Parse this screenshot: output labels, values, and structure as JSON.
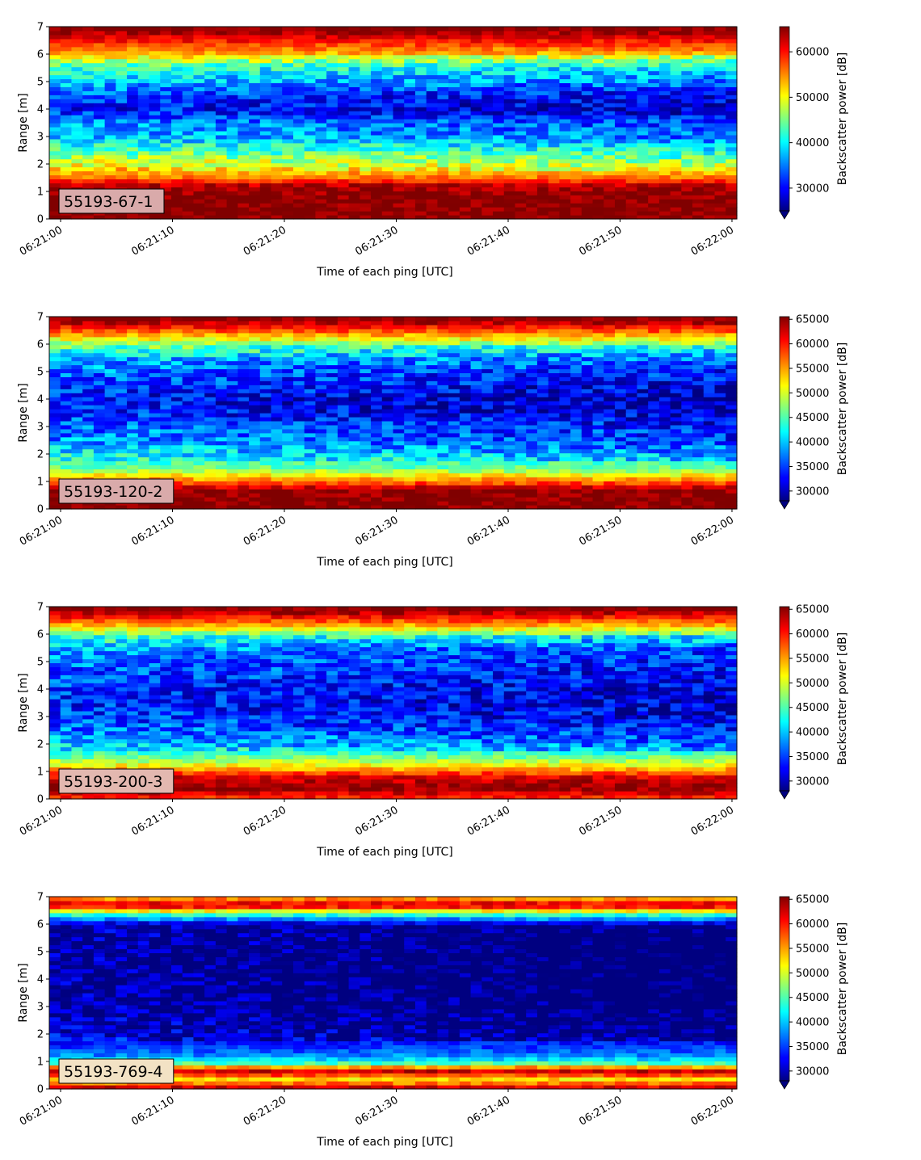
{
  "chart_data": [
    {
      "type": "heatmap",
      "title": "",
      "sample_label": "55193-67-1",
      "xlabel": "Time of each ping [UTC]",
      "ylabel": "Range [m]",
      "ylim": [
        0,
        7
      ],
      "yticks": [
        "0",
        "1",
        "2",
        "3",
        "4",
        "5",
        "6",
        "7"
      ],
      "xticks": [
        "06:21:00",
        "06:21:10",
        "06:21:20",
        "06:21:30",
        "06:21:40",
        "06:21:50",
        "06:22:00"
      ],
      "colorbar_label": "Backscatter power [dB]",
      "colorbar_ticks": [
        30000,
        40000,
        50000,
        60000
      ],
      "colorbar_ticklabels": [
        "30000",
        "40000",
        "50000",
        "60000"
      ],
      "clim": [
        25000,
        65535
      ],
      "colormap": "jet",
      "label_box_color": "#d9aaaa",
      "profile": [
        {
          "y": 0.2,
          "v": 65535
        },
        {
          "y": 0.8,
          "v": 65000
        },
        {
          "y": 1.2,
          "v": 64000
        },
        {
          "y": 1.5,
          "v": 56000
        },
        {
          "y": 2.0,
          "v": 50000
        },
        {
          "y": 2.5,
          "v": 44000
        },
        {
          "y": 3.0,
          "v": 38000
        },
        {
          "y": 3.5,
          "v": 36000
        },
        {
          "y": 4.0,
          "v": 31000
        },
        {
          "y": 4.5,
          "v": 33000
        },
        {
          "y": 5.0,
          "v": 38000
        },
        {
          "y": 5.5,
          "v": 42000
        },
        {
          "y": 6.0,
          "v": 53000
        },
        {
          "y": 6.5,
          "v": 60000
        },
        {
          "y": 6.9,
          "v": 65535
        }
      ]
    },
    {
      "type": "heatmap",
      "title": "",
      "sample_label": "55193-120-2",
      "xlabel": "Time of each ping [UTC]",
      "ylabel": "Range [m]",
      "ylim": [
        0,
        7
      ],
      "yticks": [
        "0",
        "1",
        "2",
        "3",
        "4",
        "5",
        "6",
        "7"
      ],
      "xticks": [
        "06:21:00",
        "06:21:10",
        "06:21:20",
        "06:21:30",
        "06:21:40",
        "06:21:50",
        "06:22:00"
      ],
      "colorbar_label": "Backscatter power [dB]",
      "colorbar_ticks": [
        30000,
        35000,
        40000,
        45000,
        50000,
        55000,
        60000,
        65000
      ],
      "colorbar_ticklabels": [
        "30000",
        "35000",
        "40000",
        "45000",
        "50000",
        "55000",
        "60000",
        "65000"
      ],
      "clim": [
        28000,
        65535
      ],
      "colormap": "jet",
      "label_box_color": "#d9aaaa",
      "profile": [
        {
          "y": 0.2,
          "v": 65535
        },
        {
          "y": 0.7,
          "v": 65000
        },
        {
          "y": 1.0,
          "v": 57000
        },
        {
          "y": 1.5,
          "v": 46000
        },
        {
          "y": 2.0,
          "v": 42000
        },
        {
          "y": 2.5,
          "v": 38000
        },
        {
          "y": 3.0,
          "v": 37000
        },
        {
          "y": 3.5,
          "v": 34000
        },
        {
          "y": 4.0,
          "v": 33000
        },
        {
          "y": 4.5,
          "v": 35000
        },
        {
          "y": 5.0,
          "v": 37000
        },
        {
          "y": 5.5,
          "v": 40000
        },
        {
          "y": 6.0,
          "v": 47000
        },
        {
          "y": 6.5,
          "v": 58000
        },
        {
          "y": 6.9,
          "v": 65535
        }
      ]
    },
    {
      "type": "heatmap",
      "title": "",
      "sample_label": "55193-200-3",
      "xlabel": "Time of each ping [UTC]",
      "ylabel": "Range [m]",
      "ylim": [
        0,
        7
      ],
      "yticks": [
        "0",
        "1",
        "2",
        "3",
        "4",
        "5",
        "6",
        "7"
      ],
      "xticks": [
        "06:21:00",
        "06:21:10",
        "06:21:20",
        "06:21:30",
        "06:21:40",
        "06:21:50",
        "06:22:00"
      ],
      "colorbar_label": "Backscatter power [dB]",
      "colorbar_ticks": [
        30000,
        35000,
        40000,
        45000,
        50000,
        55000,
        60000,
        65000
      ],
      "colorbar_ticklabels": [
        "30000",
        "35000",
        "40000",
        "45000",
        "50000",
        "55000",
        "60000",
        "65000"
      ],
      "clim": [
        28000,
        65535
      ],
      "colormap": "jet",
      "label_box_color": "#e3b8b0",
      "profile": [
        {
          "y": 0.1,
          "v": 60000
        },
        {
          "y": 0.4,
          "v": 65535
        },
        {
          "y": 0.8,
          "v": 62000
        },
        {
          "y": 1.2,
          "v": 52000
        },
        {
          "y": 1.6,
          "v": 45000
        },
        {
          "y": 2.0,
          "v": 40000
        },
        {
          "y": 2.5,
          "v": 37000
        },
        {
          "y": 3.0,
          "v": 35000
        },
        {
          "y": 3.5,
          "v": 34000
        },
        {
          "y": 4.0,
          "v": 34500
        },
        {
          "y": 4.5,
          "v": 35500
        },
        {
          "y": 5.0,
          "v": 37000
        },
        {
          "y": 5.5,
          "v": 39000
        },
        {
          "y": 6.0,
          "v": 46000
        },
        {
          "y": 6.4,
          "v": 56000
        },
        {
          "y": 6.9,
          "v": 65535
        }
      ]
    },
    {
      "type": "heatmap",
      "title": "",
      "sample_label": "55193-769-4",
      "xlabel": "Time of each ping [UTC]",
      "ylabel": "Range [m]",
      "ylim": [
        0,
        7
      ],
      "yticks": [
        "0",
        "1",
        "2",
        "3",
        "4",
        "5",
        "6",
        "7"
      ],
      "xticks": [
        "06:21:00",
        "06:21:10",
        "06:21:20",
        "06:21:30",
        "06:21:40",
        "06:21:50",
        "06:22:00"
      ],
      "colorbar_label": "Backscatter power [dB]",
      "colorbar_ticks": [
        30000,
        35000,
        40000,
        45000,
        50000,
        55000,
        60000,
        65000
      ],
      "colorbar_ticklabels": [
        "30000",
        "35000",
        "40000",
        "45000",
        "50000",
        "55000",
        "60000",
        "65000"
      ],
      "clim": [
        28000,
        65535
      ],
      "colormap": "jet",
      "label_box_color": "#f2e2c4",
      "profile": [
        {
          "y": 0.15,
          "v": 62000
        },
        {
          "y": 0.3,
          "v": 50000
        },
        {
          "y": 0.5,
          "v": 58000
        },
        {
          "y": 0.7,
          "v": 64000
        },
        {
          "y": 0.9,
          "v": 46000
        },
        {
          "y": 1.2,
          "v": 38000
        },
        {
          "y": 1.6,
          "v": 34000
        },
        {
          "y": 2.0,
          "v": 31000
        },
        {
          "y": 3.0,
          "v": 29500
        },
        {
          "y": 4.0,
          "v": 29000
        },
        {
          "y": 5.0,
          "v": 29000
        },
        {
          "y": 6.0,
          "v": 30000
        },
        {
          "y": 6.4,
          "v": 46000
        },
        {
          "y": 6.7,
          "v": 64000
        },
        {
          "y": 6.9,
          "v": 56000
        }
      ]
    }
  ]
}
